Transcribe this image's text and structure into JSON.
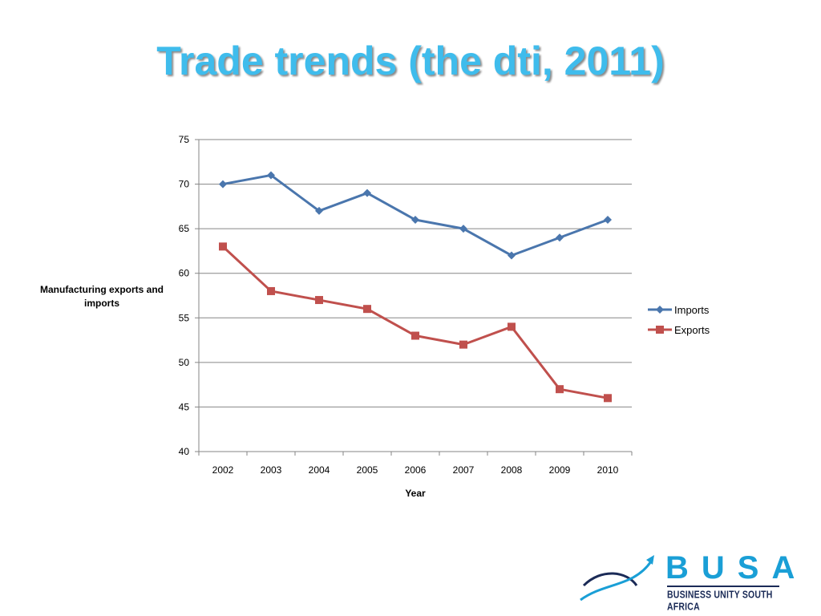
{
  "slide": {
    "title": "Trade trends (the dti, 2011)"
  },
  "chart_data": {
    "type": "line",
    "title": "",
    "xlabel": "Year",
    "ylabel": "Manufacturing exports and imports",
    "x": [
      "2002",
      "2003",
      "2004",
      "2005",
      "2006",
      "2007",
      "2008",
      "2009",
      "2010"
    ],
    "ylim": [
      40,
      75
    ],
    "yticks": [
      40,
      45,
      50,
      55,
      60,
      65,
      70,
      75
    ],
    "grid": true,
    "legend_position": "right",
    "series": [
      {
        "name": "Imports",
        "values": [
          70,
          71,
          67,
          69,
          66,
          65,
          62,
          64,
          66
        ],
        "color": "#4a76ad",
        "marker": "diamond"
      },
      {
        "name": "Exports",
        "values": [
          63,
          58,
          57,
          56,
          53,
          52,
          54,
          47,
          46
        ],
        "color": "#c0504d",
        "marker": "square"
      }
    ]
  },
  "logo": {
    "word": "BUSA",
    "tagline": "BUSINESS UNITY SOUTH AFRICA",
    "color_primary": "#1a9fd6",
    "color_secondary": "#1b2b57"
  }
}
